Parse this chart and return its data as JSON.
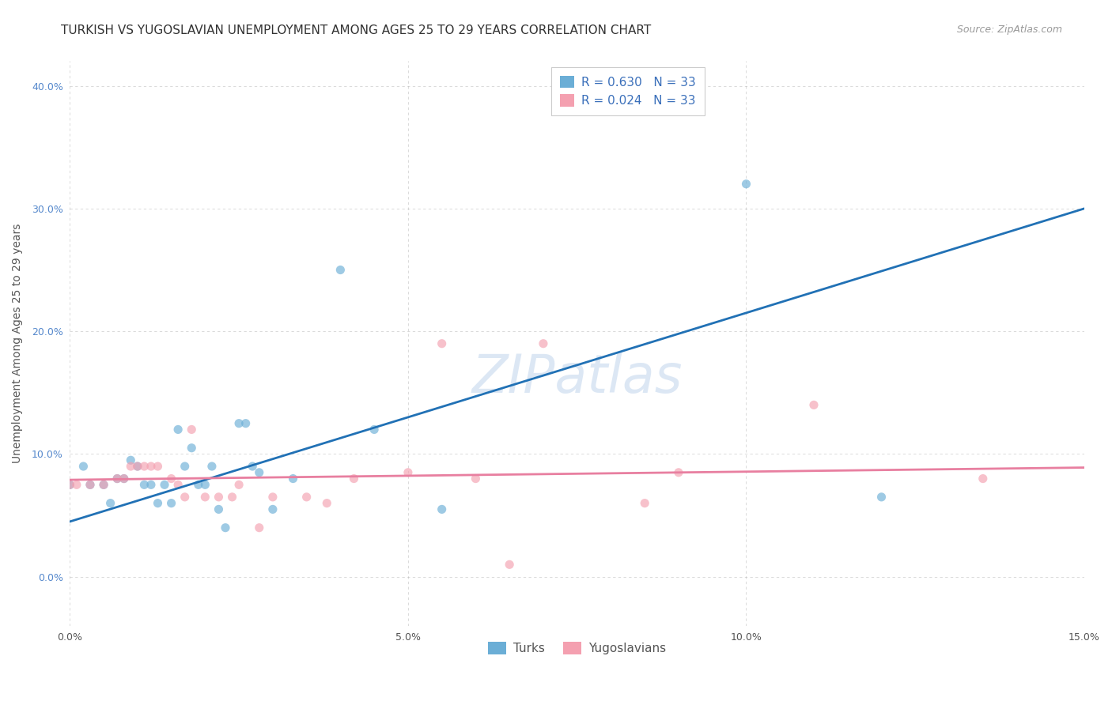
{
  "title": "TURKISH VS YUGOSLAVIAN UNEMPLOYMENT AMONG AGES 25 TO 29 YEARS CORRELATION CHART",
  "source": "Source: ZipAtlas.com",
  "ylabel_label": "Unemployment Among Ages 25 to 29 years",
  "xlim": [
    0.0,
    0.15
  ],
  "ylim": [
    -0.04,
    0.42
  ],
  "turks_color": "#6baed6",
  "yugoslavians_color": "#f4a0b0",
  "turks_line_color": "#2171b5",
  "yugoslavians_line_color": "#e87fa0",
  "legend_text_color": "#3a6fba",
  "turks_R": "0.630",
  "turks_N": "33",
  "yugoslavians_R": "0.024",
  "yugoslavians_N": "33",
  "watermark_text": "ZIPatlas",
  "turks_x": [
    0.0,
    0.002,
    0.003,
    0.005,
    0.006,
    0.007,
    0.008,
    0.009,
    0.01,
    0.011,
    0.012,
    0.013,
    0.014,
    0.015,
    0.016,
    0.017,
    0.018,
    0.019,
    0.02,
    0.021,
    0.022,
    0.023,
    0.025,
    0.026,
    0.027,
    0.028,
    0.03,
    0.033,
    0.04,
    0.045,
    0.055,
    0.1,
    0.12
  ],
  "turks_y": [
    0.075,
    0.09,
    0.075,
    0.075,
    0.06,
    0.08,
    0.08,
    0.095,
    0.09,
    0.075,
    0.075,
    0.06,
    0.075,
    0.06,
    0.12,
    0.09,
    0.105,
    0.075,
    0.075,
    0.09,
    0.055,
    0.04,
    0.125,
    0.125,
    0.09,
    0.085,
    0.055,
    0.08,
    0.25,
    0.12,
    0.055,
    0.32,
    0.065
  ],
  "yugoslavians_x": [
    0.0,
    0.001,
    0.003,
    0.005,
    0.007,
    0.008,
    0.009,
    0.01,
    0.011,
    0.012,
    0.013,
    0.015,
    0.016,
    0.017,
    0.018,
    0.02,
    0.022,
    0.024,
    0.025,
    0.028,
    0.03,
    0.035,
    0.038,
    0.042,
    0.05,
    0.055,
    0.06,
    0.065,
    0.07,
    0.085,
    0.09,
    0.11,
    0.135
  ],
  "yugoslavians_y": [
    0.075,
    0.075,
    0.075,
    0.075,
    0.08,
    0.08,
    0.09,
    0.09,
    0.09,
    0.09,
    0.09,
    0.08,
    0.075,
    0.065,
    0.12,
    0.065,
    0.065,
    0.065,
    0.075,
    0.04,
    0.065,
    0.065,
    0.06,
    0.08,
    0.085,
    0.19,
    0.08,
    0.01,
    0.19,
    0.06,
    0.085,
    0.14,
    0.08
  ],
  "turks_line_x0": 0.0,
  "turks_line_x1": 0.15,
  "turks_line_y0": 0.045,
  "turks_line_y1": 0.3,
  "yugo_line_x0": 0.0,
  "yugo_line_x1": 0.15,
  "yugo_line_y0": 0.079,
  "yugo_line_y1": 0.089,
  "grid_color": "#aaaaaa",
  "background_color": "#ffffff",
  "title_fontsize": 11,
  "axis_label_fontsize": 10,
  "tick_fontsize": 9,
  "legend_fontsize": 11,
  "source_fontsize": 9,
  "watermark_fontsize": 48,
  "scatter_size": 65,
  "scatter_alpha": 0.65,
  "turks_label": "Turks",
  "yugoslavians_label": "Yugoslavians"
}
